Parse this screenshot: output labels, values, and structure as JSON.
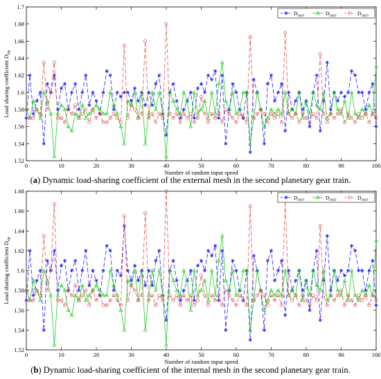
{
  "charts": [
    {
      "id": "a",
      "caption_letter": "a",
      "caption_text": " Dynamic load-sharing coefficient of the external mesh in the second planetary gear train.",
      "ylabel_text": "Load sharing coefficient D",
      "ylabel_sub": "ep",
      "xlabel": "Number of random input speed",
      "legend": [
        {
          "base": "D",
          "sub": "2sp1"
        },
        {
          "base": "D",
          "sub": "2sp2"
        },
        {
          "base": "D",
          "sub": "2sp3"
        }
      ]
    },
    {
      "id": "b",
      "caption_letter": "b",
      "caption_text": " Dynamic load-sharing coefficient of the internal mesh in the second planetary gear train.",
      "ylabel_text": "Load sharing coefficient D",
      "ylabel_sub": "ep",
      "xlabel": "Number of random input speed",
      "legend": [
        {
          "base": "D",
          "sub": "2rp1"
        },
        {
          "base": "D",
          "sub": "2rp2"
        },
        {
          "base": "D",
          "sub": "2rp3"
        }
      ]
    }
  ],
  "chart_data": [
    {
      "type": "line",
      "xlim": [
        0,
        100
      ],
      "ylim": [
        1.52,
        1.7
      ],
      "xticks": [
        0,
        10,
        20,
        30,
        40,
        50,
        60,
        70,
        80,
        90,
        100
      ],
      "yticks": [
        1.52,
        1.54,
        1.56,
        1.58,
        1.6,
        1.62,
        1.64,
        1.66,
        1.68,
        1.7
      ],
      "grid": false,
      "legend_position": "top-right",
      "series": [
        {
          "name": "D2sp1",
          "color": "#1a1aff",
          "marker": "asterisk",
          "dash": "6,3",
          "values": [
            1.57,
            1.62,
            1.575,
            1.59,
            1.6,
            1.54,
            1.61,
            1.6,
            1.62,
            1.58,
            1.605,
            1.61,
            1.58,
            1.6,
            1.61,
            1.58,
            1.6,
            1.62,
            1.585,
            1.6,
            1.59,
            1.575,
            1.6,
            1.625,
            1.62,
            1.58,
            1.6,
            1.595,
            1.6,
            1.6,
            1.59,
            1.605,
            1.59,
            1.6,
            1.585,
            1.6,
            1.585,
            1.61,
            1.62,
            1.575,
            1.55,
            1.6,
            1.61,
            1.59,
            1.57,
            1.58,
            1.59,
            1.6,
            1.57,
            1.605,
            1.61,
            1.6,
            1.62,
            1.615,
            1.625,
            1.57,
            1.62,
            1.54,
            1.58,
            1.61,
            1.6,
            1.58,
            1.57,
            1.6,
            1.53,
            1.615,
            1.6,
            1.58,
            1.54,
            1.61,
            1.62,
            1.59,
            1.6,
            1.61,
            1.555,
            1.6,
            1.58,
            1.59,
            1.6,
            1.58,
            1.59,
            1.56,
            1.6,
            1.62,
            1.555,
            1.59,
            1.635,
            1.58,
            1.6,
            1.59,
            1.6,
            1.595,
            1.6,
            1.625,
            1.62,
            1.6,
            1.6,
            1.58,
            1.6,
            1.61,
            1.56
          ]
        },
        {
          "name": "D2sp2",
          "color": "#22cc22",
          "marker": "triangle",
          "dash": "",
          "values": [
            1.58,
            1.57,
            1.59,
            1.58,
            1.57,
            1.6,
            1.59,
            1.575,
            1.525,
            1.575,
            1.585,
            1.58,
            1.56,
            1.555,
            1.575,
            1.57,
            1.585,
            1.57,
            1.575,
            1.58,
            1.585,
            1.58,
            1.575,
            1.575,
            1.6,
            1.585,
            1.575,
            1.56,
            1.54,
            1.59,
            1.585,
            1.6,
            1.57,
            1.6,
            1.54,
            1.575,
            1.6,
            1.58,
            1.6,
            1.575,
            1.525,
            1.6,
            1.59,
            1.58,
            1.575,
            1.6,
            1.59,
            1.56,
            1.6,
            1.575,
            1.58,
            1.59,
            1.57,
            1.6,
            1.575,
            1.61,
            1.635,
            1.59,
            1.58,
            1.6,
            1.575,
            1.58,
            1.6,
            1.6,
            1.54,
            1.57,
            1.6,
            1.58,
            1.56,
            1.57,
            1.58,
            1.575,
            1.58,
            1.575,
            1.6,
            1.575,
            1.58,
            1.575,
            1.6,
            1.57,
            1.59,
            1.575,
            1.6,
            1.585,
            1.58,
            1.6,
            1.57,
            1.575,
            1.6,
            1.58,
            1.575,
            1.59,
            1.57,
            1.6,
            1.575,
            1.57,
            1.58,
            1.575,
            1.585,
            1.575,
            1.63
          ]
        },
        {
          "name": "D2sp3",
          "color": "#e05050",
          "marker": "circle",
          "dash": "6,3",
          "values": [
            1.58,
            1.57,
            1.57,
            1.58,
            1.575,
            1.635,
            1.58,
            1.6,
            1.635,
            1.57,
            1.57,
            1.565,
            1.58,
            1.575,
            1.585,
            1.57,
            1.575,
            1.58,
            1.565,
            1.58,
            1.57,
            1.575,
            1.565,
            1.565,
            1.57,
            1.575,
            1.57,
            1.565,
            1.655,
            1.57,
            1.585,
            1.58,
            1.57,
            1.575,
            1.66,
            1.57,
            1.575,
            1.565,
            1.575,
            1.57,
            1.68,
            1.575,
            1.57,
            1.575,
            1.565,
            1.575,
            1.57,
            1.575,
            1.565,
            1.57,
            1.595,
            1.575,
            1.565,
            1.575,
            1.57,
            1.575,
            1.565,
            1.58,
            1.575,
            1.57,
            1.565,
            1.575,
            1.57,
            1.565,
            1.665,
            1.57,
            1.575,
            1.58,
            1.575,
            1.565,
            1.575,
            1.57,
            1.575,
            1.565,
            1.67,
            1.575,
            1.57,
            1.575,
            1.565,
            1.575,
            1.57,
            1.565,
            1.575,
            1.57,
            1.645,
            1.575,
            1.565,
            1.575,
            1.57,
            1.575,
            1.58,
            1.565,
            1.575,
            1.57,
            1.565,
            1.575,
            1.57,
            1.575,
            1.565,
            1.575,
            1.57
          ]
        }
      ]
    },
    {
      "type": "line",
      "xlim": [
        0,
        100
      ],
      "ylim": [
        1.52,
        1.68
      ],
      "xticks": [
        0,
        10,
        20,
        30,
        40,
        50,
        60,
        70,
        80,
        90,
        100
      ],
      "yticks": [
        1.52,
        1.54,
        1.56,
        1.58,
        1.6,
        1.62,
        1.64,
        1.66,
        1.68
      ],
      "grid": false,
      "legend_position": "top-right",
      "series": [
        {
          "name": "D2rp1",
          "color": "#1a1aff",
          "marker": "asterisk",
          "dash": "6,3",
          "values": [
            1.57,
            1.62,
            1.575,
            1.59,
            1.6,
            1.54,
            1.61,
            1.6,
            1.62,
            1.58,
            1.605,
            1.61,
            1.58,
            1.6,
            1.61,
            1.58,
            1.6,
            1.62,
            1.585,
            1.6,
            1.59,
            1.575,
            1.6,
            1.625,
            1.62,
            1.58,
            1.6,
            1.595,
            1.645,
            1.6,
            1.59,
            1.605,
            1.59,
            1.6,
            1.585,
            1.6,
            1.585,
            1.61,
            1.62,
            1.575,
            1.55,
            1.6,
            1.61,
            1.59,
            1.57,
            1.58,
            1.59,
            1.6,
            1.57,
            1.605,
            1.61,
            1.6,
            1.62,
            1.615,
            1.625,
            1.57,
            1.62,
            1.54,
            1.58,
            1.61,
            1.6,
            1.58,
            1.57,
            1.6,
            1.53,
            1.615,
            1.6,
            1.58,
            1.54,
            1.61,
            1.62,
            1.59,
            1.6,
            1.61,
            1.555,
            1.6,
            1.58,
            1.59,
            1.6,
            1.58,
            1.59,
            1.56,
            1.6,
            1.62,
            1.55,
            1.59,
            1.635,
            1.58,
            1.6,
            1.59,
            1.6,
            1.595,
            1.6,
            1.625,
            1.62,
            1.6,
            1.6,
            1.58,
            1.6,
            1.61,
            1.565
          ]
        },
        {
          "name": "D2rp2",
          "color": "#22cc22",
          "marker": "triangle",
          "dash": "",
          "values": [
            1.58,
            1.57,
            1.59,
            1.58,
            1.57,
            1.6,
            1.59,
            1.575,
            1.525,
            1.575,
            1.585,
            1.58,
            1.56,
            1.555,
            1.575,
            1.57,
            1.585,
            1.57,
            1.575,
            1.58,
            1.585,
            1.58,
            1.575,
            1.575,
            1.6,
            1.585,
            1.575,
            1.56,
            1.54,
            1.59,
            1.585,
            1.6,
            1.57,
            1.6,
            1.54,
            1.575,
            1.6,
            1.58,
            1.6,
            1.575,
            1.525,
            1.6,
            1.59,
            1.58,
            1.575,
            1.6,
            1.59,
            1.56,
            1.6,
            1.575,
            1.58,
            1.59,
            1.57,
            1.6,
            1.575,
            1.61,
            1.635,
            1.59,
            1.58,
            1.6,
            1.575,
            1.58,
            1.6,
            1.6,
            1.54,
            1.57,
            1.6,
            1.58,
            1.56,
            1.57,
            1.58,
            1.575,
            1.58,
            1.575,
            1.6,
            1.575,
            1.58,
            1.575,
            1.6,
            1.57,
            1.59,
            1.575,
            1.6,
            1.585,
            1.58,
            1.6,
            1.57,
            1.575,
            1.6,
            1.58,
            1.575,
            1.59,
            1.57,
            1.6,
            1.575,
            1.57,
            1.58,
            1.575,
            1.585,
            1.575,
            1.63
          ]
        },
        {
          "name": "D2rp3",
          "color": "#e05050",
          "marker": "circle",
          "dash": "6,3",
          "values": [
            1.58,
            1.57,
            1.57,
            1.58,
            1.575,
            1.635,
            1.58,
            1.6,
            1.667,
            1.57,
            1.57,
            1.565,
            1.58,
            1.575,
            1.585,
            1.57,
            1.575,
            1.58,
            1.565,
            1.58,
            1.57,
            1.575,
            1.565,
            1.565,
            1.57,
            1.575,
            1.57,
            1.565,
            1.655,
            1.57,
            1.585,
            1.58,
            1.57,
            1.575,
            1.658,
            1.57,
            1.575,
            1.565,
            1.575,
            1.57,
            1.68,
            1.575,
            1.57,
            1.575,
            1.565,
            1.575,
            1.57,
            1.575,
            1.565,
            1.57,
            1.595,
            1.575,
            1.565,
            1.575,
            1.57,
            1.575,
            1.565,
            1.58,
            1.575,
            1.57,
            1.565,
            1.575,
            1.57,
            1.565,
            1.665,
            1.57,
            1.575,
            1.58,
            1.575,
            1.565,
            1.575,
            1.57,
            1.575,
            1.565,
            1.67,
            1.575,
            1.57,
            1.575,
            1.565,
            1.575,
            1.57,
            1.565,
            1.575,
            1.57,
            1.645,
            1.575,
            1.565,
            1.575,
            1.57,
            1.575,
            1.58,
            1.565,
            1.575,
            1.57,
            1.565,
            1.575,
            1.57,
            1.575,
            1.565,
            1.575,
            1.57
          ]
        }
      ]
    }
  ]
}
